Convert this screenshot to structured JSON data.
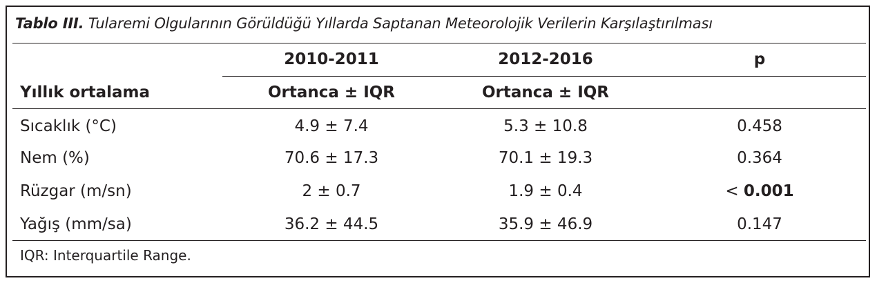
{
  "caption": {
    "label": "Tablo III.",
    "title": "Tularemi Olgularının Görüldüğü Yıllarda Saptanan Meteorolojik Verilerin Karşılaştırılması"
  },
  "header": {
    "period1": "2010-2011",
    "period2": "2012-2016",
    "p": "p",
    "row_label": "Yıllık ortalama",
    "stat1": "Ortanca ± IQR",
    "stat2": "Ortanca ± IQR"
  },
  "rows": [
    {
      "label": "Sıcaklık (°C)",
      "v1": "4.9 ± 7.4",
      "v2": "5.3 ± 10.8",
      "p_prefix": "",
      "p": "0.458",
      "p_bold": false
    },
    {
      "label": "Nem (%)",
      "v1": "70.6 ± 17.3",
      "v2": "70.1 ± 19.3",
      "p_prefix": "",
      "p": "0.364",
      "p_bold": false
    },
    {
      "label": "Rüzgar (m/sn)",
      "v1": "2 ± 0.7",
      "v2": "1.9 ± 0.4",
      "p_prefix": "< ",
      "p": "0.001",
      "p_bold": true
    },
    {
      "label": "Yağış (mm/sa)",
      "v1": "36.2 ± 44.5",
      "v2": "35.9 ± 46.9",
      "p_prefix": "",
      "p": "0.147",
      "p_bold": false
    }
  ],
  "footnote": "IQR: Interquartile Range.",
  "colors": {
    "text": "#231f20",
    "rule": "#231f20"
  }
}
